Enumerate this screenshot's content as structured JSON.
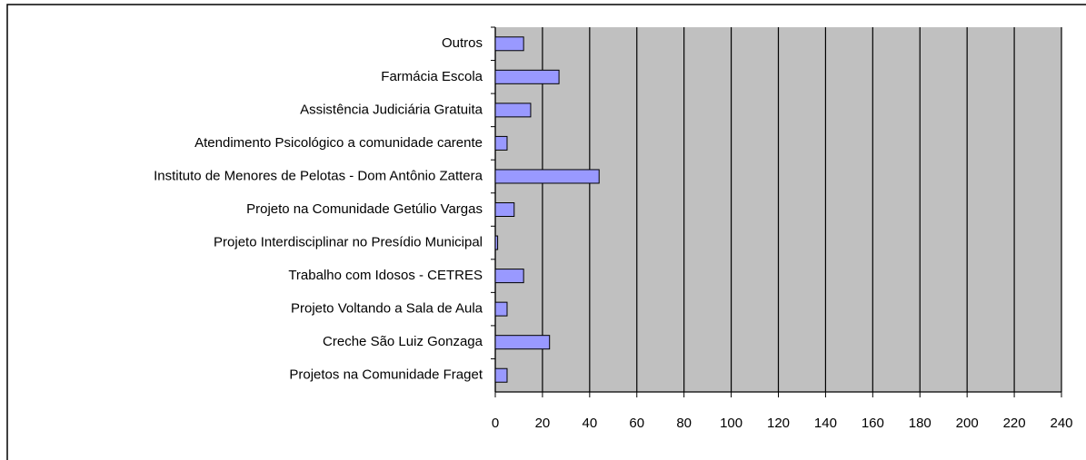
{
  "chart_data": {
    "type": "barh",
    "categories": [
      "Outros",
      "Farmácia Escola",
      "Assistência Judiciária Gratuita",
      "Atendimento Psicológico a comunidade carente",
      "Instituto de Menores de Pelotas - Dom Antônio Zattera",
      "Projeto na Comunidade Getúlio Vargas",
      "Projeto Interdisciplinar no Presídio Municipal",
      "Trabalho com Idosos - CETRES",
      "Projeto Voltando a Sala de Aula",
      "Creche São Luiz Gonzaga",
      "Projetos na Comunidade Fraget"
    ],
    "values": [
      12,
      27,
      15,
      5,
      44,
      8,
      1,
      12,
      5,
      23,
      5
    ],
    "color": "#9999ff",
    "xlim": [
      0,
      240
    ],
    "xticks": [
      0,
      20,
      40,
      60,
      80,
      100,
      120,
      140,
      160,
      180,
      200,
      220,
      240
    ],
    "grid": true
  }
}
